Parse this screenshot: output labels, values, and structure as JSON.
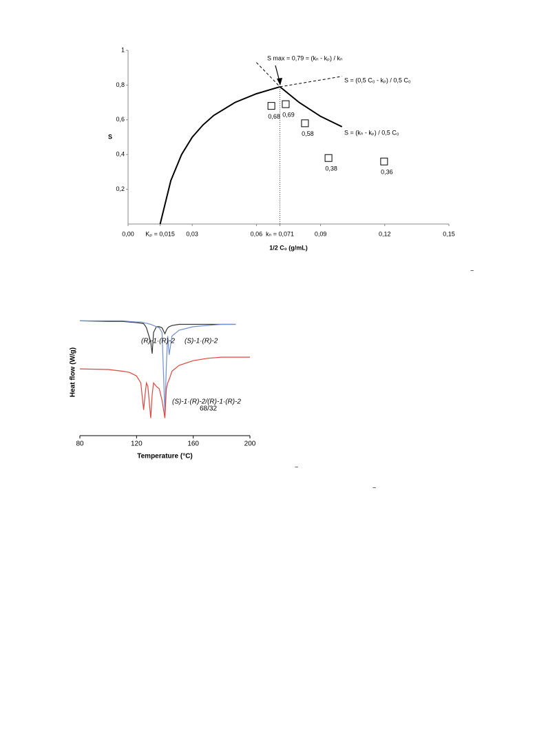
{
  "chart_data": [
    {
      "type": "scatter",
      "xlabel": "1/2 C₀ (g/mL)",
      "ylabel": "S",
      "xlim": [
        0,
        0.15
      ],
      "ylim": [
        0,
        1
      ],
      "xticks": [
        {
          "value": 0,
          "label": "0,00"
        },
        {
          "value": 0.015,
          "label": "Kₚ = 0,015"
        },
        {
          "value": 0.03,
          "label": "0,03"
        },
        {
          "value": 0.06,
          "label": "0,06"
        },
        {
          "value": 0.071,
          "label": "kₙ = 0,071"
        },
        {
          "value": 0.09,
          "label": "0,09"
        },
        {
          "value": 0.12,
          "label": "0,12"
        },
        {
          "value": 0.15,
          "label": "0,15"
        }
      ],
      "yticks": [
        {
          "value": 0.2,
          "label": "0,2"
        },
        {
          "value": 0.4,
          "label": "0,4"
        },
        {
          "value": 0.6,
          "label": "0,6"
        },
        {
          "value": 0.8,
          "label": "0,8"
        },
        1
      ],
      "x": [
        0.067,
        0.0737,
        0.0827,
        0.0937,
        0.1197
      ],
      "values": [
        0.68,
        0.69,
        0.58,
        0.38,
        0.36
      ],
      "value_labels": [
        "0,68",
        "0,69",
        "0,58",
        "0,38",
        "0,36"
      ],
      "curves": [
        {
          "dash": false,
          "x": [
            0.015,
            0.02,
            0.025,
            0.03,
            0.035,
            0.04,
            0.05,
            0.06,
            0.071
          ],
          "values": [
            0,
            0.25,
            0.4,
            0.5,
            0.57,
            0.625,
            0.7,
            0.75,
            0.79
          ]
        },
        {
          "dash": false,
          "x": [
            0.071,
            0.08,
            0.09,
            0.1
          ],
          "values": [
            0.79,
            0.7,
            0.62,
            0.56
          ]
        },
        {
          "dash": true,
          "x": [
            0.071,
            0.1
          ],
          "values": [
            0.79,
            0.85
          ]
        },
        {
          "dash": true,
          "x": [
            0.06,
            0.071
          ],
          "values": [
            0.93,
            0.79
          ]
        }
      ],
      "annotations": [
        "S max = 0,79 = (kₙ - kₚ) / kₙ",
        "S = (0,5 C₀ - kₚ) / 0,5 C₀",
        "S = (kₙ - kₚ) / 0,5 C₀"
      ]
    },
    {
      "type": "line",
      "xlabel": "Temperature (°C)",
      "ylabel": "Heat flow (W/g)",
      "xlim": [
        80,
        200
      ],
      "xticks": [
        80,
        120,
        160,
        200
      ],
      "ylim": [
        0,
        100
      ],
      "x": [
        80,
        100,
        110,
        115,
        120,
        123,
        125,
        126,
        127,
        128,
        130,
        131,
        132,
        134,
        136,
        138,
        140,
        141,
        142,
        143,
        145,
        150,
        160,
        170,
        180,
        190,
        200
      ],
      "series": [
        {
          "name": "(R)-1·(R)-2",
          "color": "#333333",
          "values": [
            98,
            97.5,
            97.5,
            97,
            96.5,
            96,
            95.5,
            94,
            92,
            88,
            80,
            70,
            88,
            93,
            93,
            92,
            87,
            90,
            92,
            93,
            94,
            95,
            95,
            95,
            95,
            95,
            null
          ]
        },
        {
          "name": "(S)-1·(R)-2",
          "color": "#6f8fd0",
          "values": [
            98,
            98,
            98,
            97.5,
            97,
            97,
            96.5,
            96,
            96,
            95.5,
            95,
            94.5,
            94,
            93,
            92,
            88,
            19,
            60,
            85,
            69,
            85,
            90,
            93,
            94,
            95,
            95,
            null
          ]
        },
        {
          "name": "(S)-1·(R)-2/(R)-1·(R)-2",
          "color": "#e0443c",
          "values": [
            57,
            56.5,
            55,
            54,
            51,
            45,
            22,
            35,
            45,
            42,
            15,
            35,
            45,
            42,
            40,
            30,
            15,
            40,
            45,
            48,
            55,
            60,
            64,
            66,
            67,
            67,
            67
          ]
        }
      ],
      "annotations": [
        "68/32"
      ]
    }
  ],
  "fragments": [
    "−",
    "−",
    "−"
  ]
}
